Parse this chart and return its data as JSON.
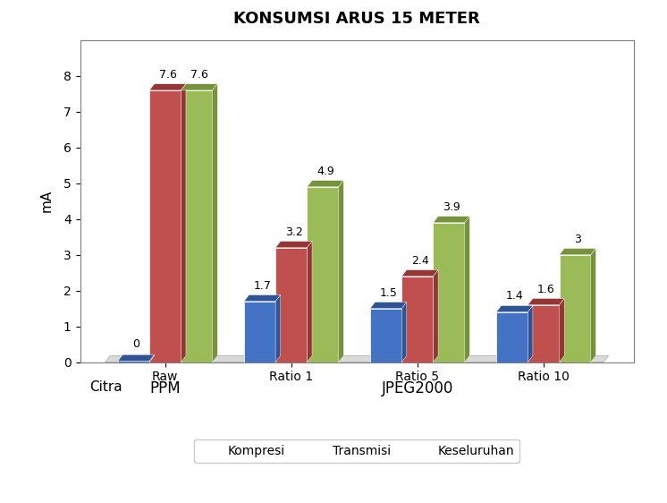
{
  "title": "KONSUMSI ARUS 15 METER",
  "ylabel": "mA",
  "xlabel_label": "Citra",
  "categories": [
    "Raw",
    "Ratio 1",
    "Ratio 5",
    "Ratio 10"
  ],
  "group_labels": [
    "PPM",
    "JPEG2000"
  ],
  "series": {
    "Kompresi": [
      0.0,
      1.7,
      1.5,
      1.4
    ],
    "Transmisi": [
      7.6,
      3.2,
      2.4,
      1.6
    ],
    "Keseluruhan": [
      7.6,
      4.9,
      3.9,
      3.0
    ]
  },
  "colors": {
    "Kompresi": "#4472C4",
    "Transmisi": "#C0504D",
    "Keseluruhan": "#9BBB59"
  },
  "shadow_colors": {
    "Kompresi": "#2F5496",
    "Transmisi": "#943634",
    "Keseluruhan": "#76923C"
  },
  "ylim": [
    0,
    9
  ],
  "yticks": [
    0,
    1,
    2,
    3,
    4,
    5,
    6,
    7,
    8
  ],
  "bar_width": 0.25,
  "title_fontsize": 13,
  "axis_label_fontsize": 11,
  "tick_fontsize": 10,
  "value_label_fontsize": 9,
  "legend_fontsize": 10,
  "background_color": "#FFFFFF"
}
